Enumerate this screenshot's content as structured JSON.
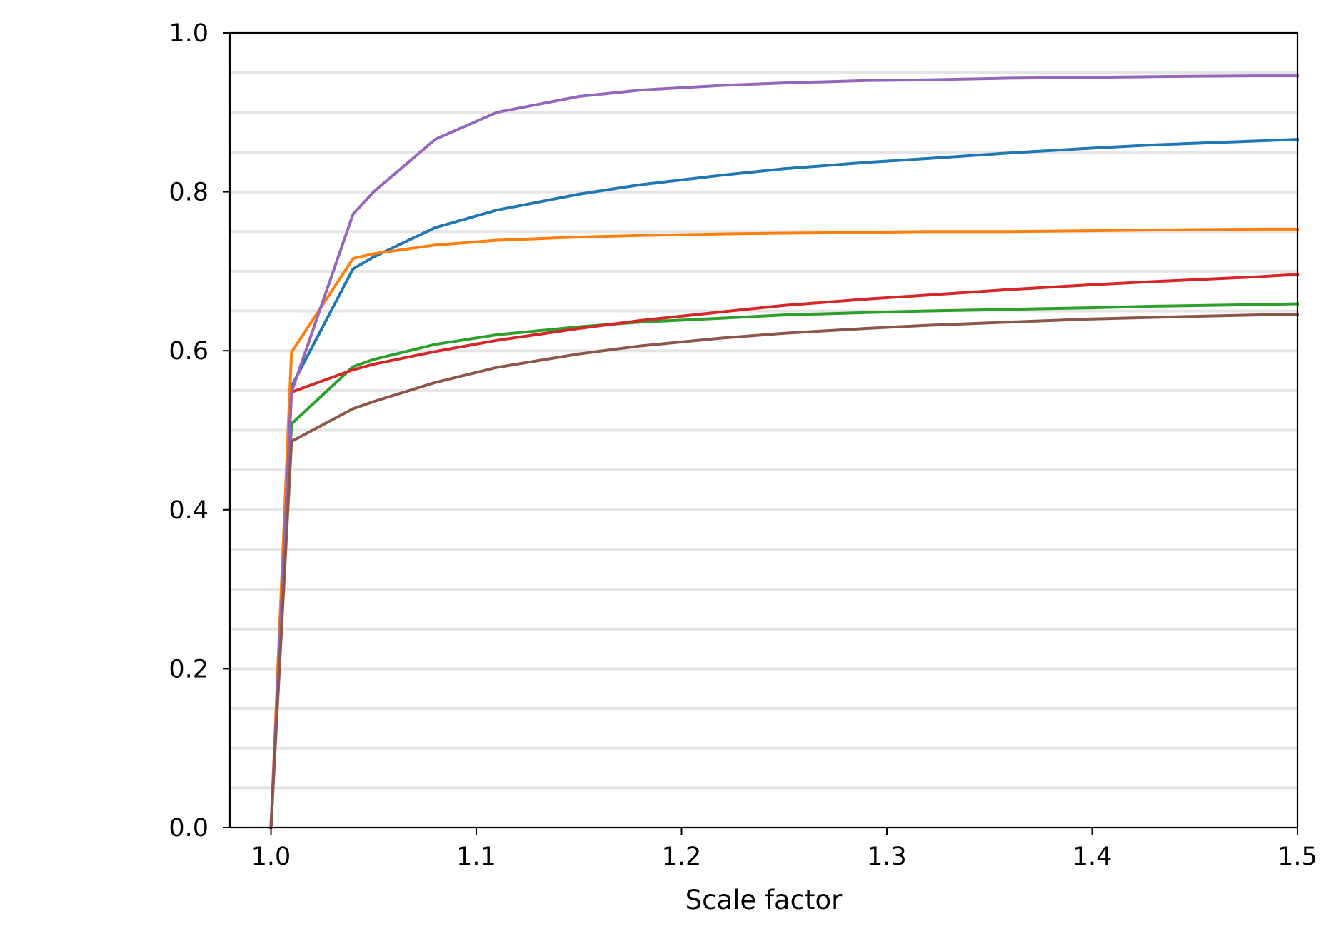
{
  "chart_data": {
    "type": "line",
    "title": "",
    "xlabel": "Scale factor",
    "ylabel": "",
    "xlim": [
      0.98,
      1.5
    ],
    "ylim": [
      0.0,
      1.0
    ],
    "x_ticks": [
      1.0,
      1.1,
      1.2,
      1.3,
      1.4,
      1.5
    ],
    "x_tick_labels": [
      "1.0",
      "1.1",
      "1.2",
      "1.3",
      "1.4",
      "1.5"
    ],
    "y_ticks": [
      0.0,
      0.2,
      0.4,
      0.6,
      0.8,
      1.0
    ],
    "y_tick_labels": [
      "0.0",
      "0.2",
      "0.4",
      "0.6",
      "0.8",
      "1.0"
    ],
    "grid": {
      "axis": "y",
      "step": 0.05,
      "color": "#e5e5e5"
    },
    "legend": "none",
    "x": [
      1.0,
      1.01,
      1.04,
      1.05,
      1.08,
      1.11,
      1.15,
      1.18,
      1.22,
      1.25,
      1.29,
      1.32,
      1.36,
      1.4,
      1.43,
      1.48,
      1.5
    ],
    "series": [
      {
        "color": "#1f77b4",
        "values": [
          0.0,
          0.555,
          0.703,
          0.718,
          0.755,
          0.777,
          0.797,
          0.809,
          0.821,
          0.829,
          0.837,
          0.842,
          0.849,
          0.855,
          0.859,
          0.864,
          0.866
        ]
      },
      {
        "color": "#ff7f0e",
        "values": [
          0.0,
          0.598,
          0.716,
          0.722,
          0.733,
          0.739,
          0.743,
          0.745,
          0.747,
          0.748,
          0.749,
          0.75,
          0.75,
          0.751,
          0.752,
          0.753,
          0.753
        ]
      },
      {
        "color": "#2ca02c",
        "values": [
          0.0,
          0.508,
          0.58,
          0.589,
          0.608,
          0.62,
          0.63,
          0.636,
          0.641,
          0.645,
          0.648,
          0.65,
          0.652,
          0.654,
          0.656,
          0.658,
          0.659
        ]
      },
      {
        "color": "#d62728",
        "values": [
          0.0,
          0.548,
          0.576,
          0.583,
          0.599,
          0.613,
          0.628,
          0.638,
          0.649,
          0.657,
          0.665,
          0.67,
          0.677,
          0.683,
          0.687,
          0.693,
          0.696
        ]
      },
      {
        "color": "#9467bd",
        "values": [
          0.0,
          0.548,
          0.772,
          0.8,
          0.866,
          0.9,
          0.92,
          0.928,
          0.934,
          0.937,
          0.94,
          0.941,
          0.943,
          0.944,
          0.945,
          0.946,
          0.946
        ]
      },
      {
        "color": "#8c564b",
        "values": [
          0.0,
          0.486,
          0.527,
          0.536,
          0.56,
          0.579,
          0.596,
          0.606,
          0.616,
          0.622,
          0.628,
          0.632,
          0.636,
          0.64,
          0.642,
          0.645,
          0.646
        ]
      }
    ]
  }
}
